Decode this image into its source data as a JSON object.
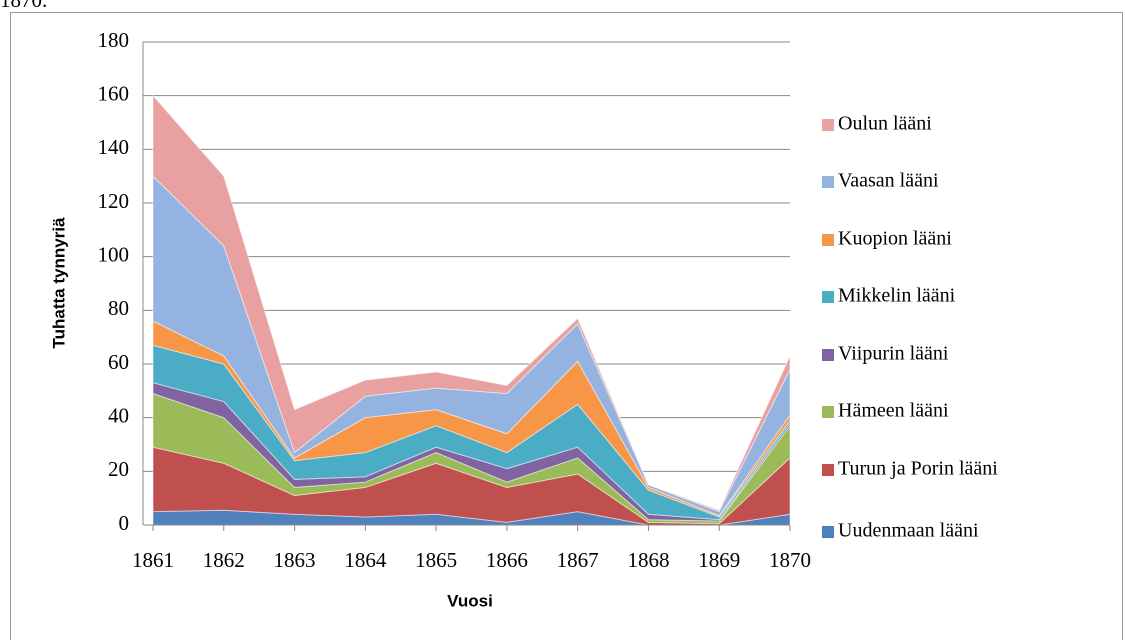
{
  "caption": "1870.",
  "chart_data": {
    "type": "stacked_area",
    "x_label": "Vuosi",
    "y_label": "Tuhatta tynnyriä",
    "categories": [
      "1861",
      "1862",
      "1863",
      "1864",
      "1865",
      "1866",
      "1867",
      "1868",
      "1869",
      "1870"
    ],
    "ylim": [
      0,
      180
    ],
    "yticks": [
      0,
      20,
      40,
      60,
      80,
      100,
      120,
      140,
      160,
      180
    ],
    "grid": true,
    "legend": "right",
    "series": [
      {
        "name": "Uudenmaan lääni",
        "color": "#4f81bd",
        "values": [
          5,
          5.5,
          4,
          3,
          4,
          1,
          5,
          0,
          0,
          4
        ]
      },
      {
        "name": "Turun ja Porin lääni",
        "color": "#c0504d",
        "values": [
          24,
          17.5,
          7,
          11,
          19,
          13,
          14,
          1,
          0.5,
          21
        ]
      },
      {
        "name": "Hämeen lääni",
        "color": "#9bbb59",
        "values": [
          20,
          17,
          3,
          2,
          4,
          2,
          6,
          1,
          1,
          12
        ]
      },
      {
        "name": "Viipurin lääni",
        "color": "#8064a2",
        "values": [
          4,
          6,
          3,
          2,
          2,
          5,
          4,
          2,
          0.5,
          1
        ]
      },
      {
        "name": "Mikkelin lääni",
        "color": "#4bacc6",
        "values": [
          14,
          14,
          7,
          9,
          8,
          6,
          16,
          9,
          1,
          1
        ]
      },
      {
        "name": "Kuopion lääni",
        "color": "#f79646",
        "values": [
          9,
          3,
          1,
          13,
          6,
          7,
          16,
          1,
          0.5,
          2
        ]
      },
      {
        "name": "Vaasan lääni",
        "color": "#95b3e0",
        "values": [
          54,
          41,
          2,
          8,
          8,
          15,
          14,
          1,
          1.5,
          17
        ]
      },
      {
        "name": "Oulun lääni",
        "color": "#e8a0a0",
        "values": [
          30,
          26,
          16,
          6,
          6,
          3,
          2,
          0,
          0.5,
          5
        ]
      }
    ]
  }
}
